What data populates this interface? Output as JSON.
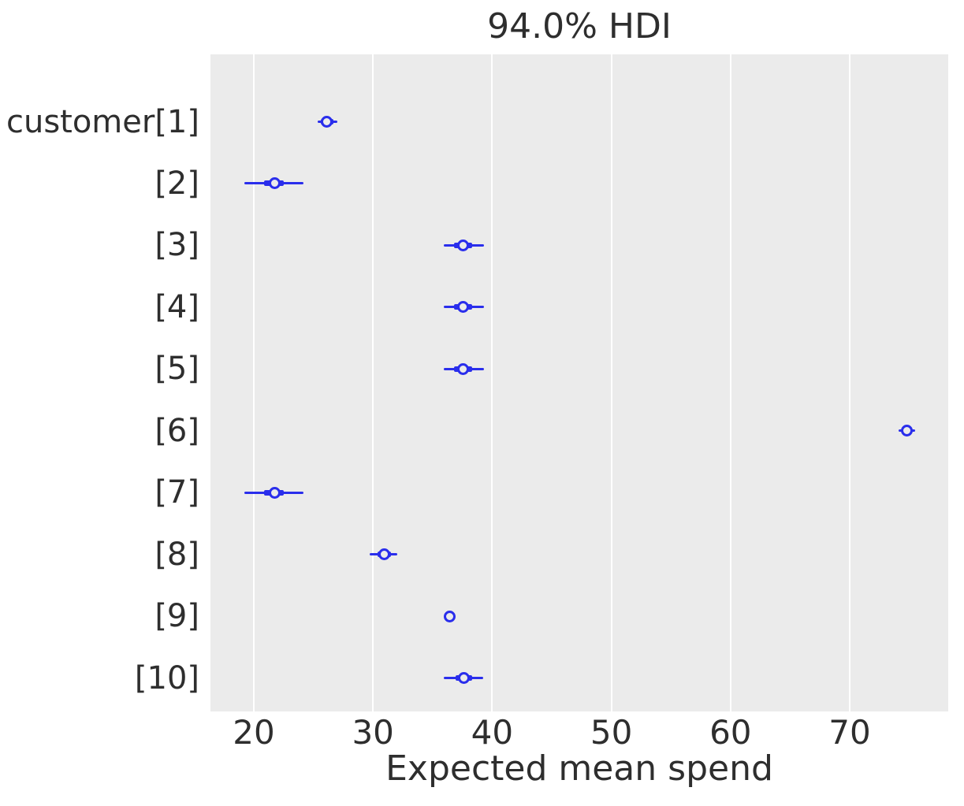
{
  "title": "94.0% HDI",
  "chart_data": {
    "type": "forest",
    "title": "94.0% HDI",
    "xlabel": "Expected mean spend",
    "xlim": [
      16.36,
      78.27
    ],
    "xticks": [
      20,
      30,
      40,
      50,
      60,
      70
    ],
    "grid": "vertical",
    "legend": "none",
    "rows": [
      {
        "label": "customer[1]",
        "mean": 26.1,
        "hdi": [
          25.35,
          27.0
        ],
        "quartile": [
          25.6,
          26.7
        ]
      },
      {
        "label": "[2]",
        "mean": 21.75,
        "hdi": [
          19.2,
          24.2
        ],
        "quartile": [
          20.85,
          22.5
        ]
      },
      {
        "label": "[3]",
        "mean": 37.55,
        "hdi": [
          35.95,
          39.3
        ],
        "quartile": [
          36.8,
          38.3
        ]
      },
      {
        "label": "[4]",
        "mean": 37.55,
        "hdi": [
          35.95,
          39.3
        ],
        "quartile": [
          36.8,
          38.3
        ]
      },
      {
        "label": "[5]",
        "mean": 37.55,
        "hdi": [
          35.95,
          39.3
        ],
        "quartile": [
          36.8,
          38.3
        ]
      },
      {
        "label": "[6]",
        "mean": 74.8,
        "hdi": [
          74.1,
          75.5
        ],
        "quartile": [
          74.4,
          75.2
        ]
      },
      {
        "label": "[7]",
        "mean": 21.75,
        "hdi": [
          19.2,
          24.2
        ],
        "quartile": [
          20.85,
          22.5
        ]
      },
      {
        "label": "[8]",
        "mean": 30.95,
        "hdi": [
          29.7,
          32.05
        ],
        "quartile": [
          30.4,
          31.5
        ]
      },
      {
        "label": "[9]",
        "mean": 36.4,
        "hdi": [
          36.1,
          36.7
        ],
        "quartile": [
          36.2,
          36.6
        ]
      },
      {
        "label": "[10]",
        "mean": 37.6,
        "hdi": [
          35.95,
          39.25
        ],
        "quartile": [
          36.9,
          38.3
        ]
      }
    ],
    "colors": {
      "series": "#2a2eec",
      "plot_bg": "#ebebeb",
      "grid": "#ffffff",
      "text": "#2e2e2e"
    }
  }
}
